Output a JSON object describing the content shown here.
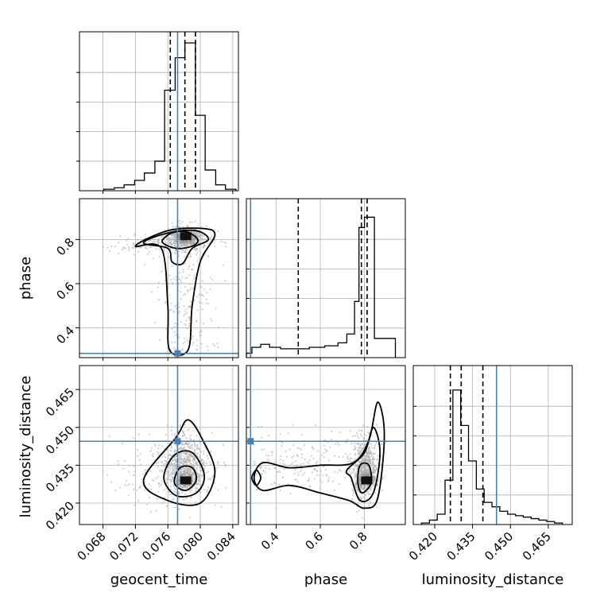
{
  "chart_data": {
    "type": "corner-plot",
    "parameters": [
      "geocent_time",
      "phase",
      "luminosity_distance"
    ],
    "axis_labels": {
      "geocent_time": "geocent_time",
      "phase": "phase",
      "luminosity_distance": "luminosity_distance"
    },
    "ranges": {
      "geocent_time": [
        0.0651,
        0.0847
      ],
      "phase": [
        0.265,
        0.985
      ],
      "luminosity_distance": [
        0.4115,
        0.4745
      ]
    },
    "ticks": {
      "geocent_time": [
        "0.068",
        "0.072",
        "0.076",
        "0.080",
        "0.084"
      ],
      "phase": [
        "0.4",
        "0.6",
        "0.8"
      ],
      "luminosity_distance": [
        "0.420",
        "0.435",
        "0.450",
        "0.465"
      ]
    },
    "truths": {
      "geocent_time": 0.0772,
      "phase": 0.284,
      "luminosity_distance": 0.4445
    },
    "quantiles": {
      "geocent_time": [
        0.0763,
        0.0781,
        0.0794
      ],
      "phase": [
        0.5,
        0.786,
        0.812
      ],
      "luminosity_distance": [
        0.4262,
        0.4305,
        0.4391
      ]
    },
    "histograms": {
      "geocent_time": {
        "edges": [
          0.0681,
          0.0694,
          0.0706,
          0.0719,
          0.0731,
          0.0744,
          0.0756,
          0.0769,
          0.0781,
          0.0794,
          0.0806,
          0.0819,
          0.0831,
          0.0844
        ],
        "counts": [
          0.01,
          0.02,
          0.04,
          0.07,
          0.12,
          0.2,
          0.68,
          0.9,
          1.0,
          0.51,
          0.14,
          0.04,
          0.01
        ]
      },
      "phase": {
        "edges": [
          0.265,
          0.29,
          0.33,
          0.37,
          0.42,
          0.48,
          0.55,
          0.62,
          0.68,
          0.72,
          0.755,
          0.775,
          0.8,
          0.845,
          0.94
        ],
        "counts": [
          0.03,
          0.07,
          0.09,
          0.07,
          0.06,
          0.06,
          0.07,
          0.08,
          0.1,
          0.16,
          0.38,
          0.88,
          0.95,
          0.13
        ]
      },
      "luminosity_distance": {
        "edges": [
          0.4148,
          0.4179,
          0.421,
          0.4241,
          0.4272,
          0.4303,
          0.4334,
          0.4365,
          0.4396,
          0.4427,
          0.4458,
          0.4489,
          0.452,
          0.4551,
          0.4582,
          0.4613,
          0.4644,
          0.4675,
          0.4706
        ],
        "counts": [
          0.01,
          0.03,
          0.07,
          0.3,
          0.91,
          0.67,
          0.43,
          0.24,
          0.15,
          0.12,
          0.09,
          0.07,
          0.06,
          0.05,
          0.04,
          0.03,
          0.02,
          0.01
        ]
      }
    },
    "grid": true,
    "colors": {
      "truth": "#4682b4",
      "hist": "#000000",
      "samples": "#b0b0b0",
      "grid": "#b0b0b0"
    }
  }
}
